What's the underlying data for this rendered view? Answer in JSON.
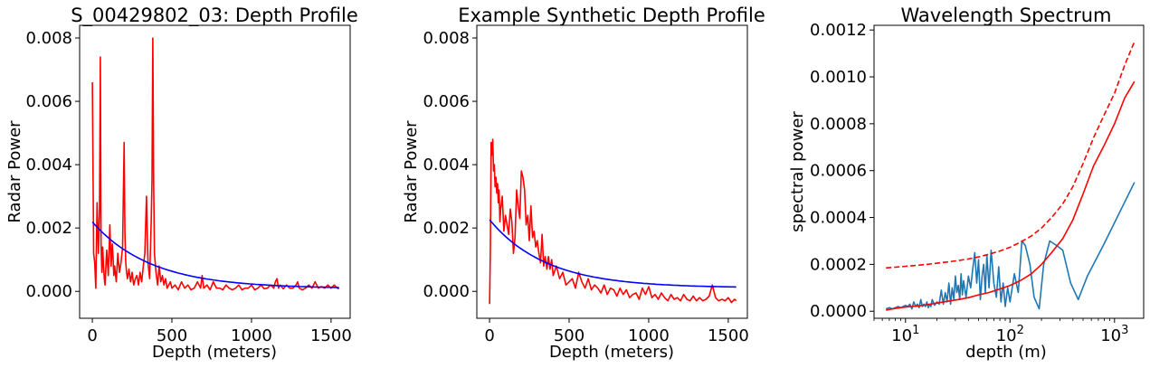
{
  "chart_data": [
    {
      "type": "line",
      "title": "S_00429802_03: Depth Profile",
      "xlabel": "Depth (meters)",
      "ylabel": "Radar Power",
      "xlim": [
        -80,
        1620
      ],
      "ylim": [
        -0.00085,
        0.0084
      ],
      "xscale": "linear",
      "grid": false,
      "xticks": [
        0,
        500,
        1000,
        1500
      ],
      "xtick_labels": [
        "0",
        "500",
        "1000",
        "1500"
      ],
      "yticks": [
        0,
        0.002,
        0.004,
        0.006,
        0.008
      ],
      "ytick_labels": [
        "0.000",
        "0.002",
        "0.004",
        "0.006",
        "0.008"
      ],
      "series": [
        {
          "color": "#ff0000",
          "style": "solid",
          "x": [
            0,
            8,
            15,
            22,
            30,
            38,
            45,
            50,
            55,
            60,
            65,
            70,
            75,
            80,
            90,
            100,
            110,
            118,
            125,
            130,
            135,
            140,
            150,
            160,
            170,
            180,
            190,
            200,
            205,
            210,
            215,
            220,
            230,
            240,
            250,
            260,
            270,
            280,
            290,
            300,
            310,
            320,
            330,
            340,
            345,
            350,
            360,
            370,
            375,
            380,
            385,
            390,
            400,
            410,
            420,
            430,
            440,
            450,
            460,
            470,
            480,
            490,
            500,
            520,
            540,
            560,
            580,
            600,
            620,
            640,
            660,
            680,
            690,
            700,
            720,
            740,
            760,
            780,
            800,
            820,
            840,
            860,
            880,
            900,
            920,
            940,
            960,
            980,
            1000,
            1020,
            1040,
            1060,
            1080,
            1100,
            1120,
            1140,
            1150,
            1160,
            1170,
            1180,
            1200,
            1220,
            1240,
            1260,
            1280,
            1290,
            1300,
            1320,
            1340,
            1360,
            1380,
            1400,
            1420,
            1440,
            1460,
            1480,
            1500,
            1520,
            1540,
            1550
          ],
          "y": [
            0.0066,
            0.0012,
            0.0009,
            0.0001,
            0.0028,
            0.0012,
            0.0026,
            0.0074,
            0.0015,
            0.0006,
            0.0014,
            0.0008,
            0.0004,
            0.0002,
            0.0013,
            0.0005,
            0.0021,
            0.0008,
            0.0015,
            0.0011,
            0.0005,
            0.0008,
            0.0003,
            0.0012,
            0.0006,
            0.0009,
            0.0014,
            0.0047,
            0.0018,
            0.0009,
            0.0006,
            0.0004,
            0.0007,
            0.0003,
            0.0006,
            0.0002,
            0.0004,
            0.0005,
            0.0002,
            0.0006,
            0.0003,
            0.0008,
            0.0012,
            0.003,
            0.0018,
            0.0009,
            0.0004,
            0.0022,
            0.0035,
            0.008,
            0.0035,
            0.0012,
            0.0006,
            0.0002,
            0.0008,
            0.0003,
            0.0005,
            0.0002,
            0.0004,
            0.0001,
            0.0002,
            0.0003,
            0.0001,
            0.0002,
            5e-05,
            0.0003,
            0.0001,
            0.0002,
            5e-05,
            0.0001,
            0.0003,
            0.0001,
            0.0005,
            0.0001,
            0.0002,
            5e-05,
            0.0003,
            0.0001,
            0.0001,
            5e-05,
            0.0002,
            0.0001,
            5e-05,
            0.0001,
            0.0002,
            5e-05,
            0.0001,
            0.0001,
            0.0002,
            5e-05,
            0.0001,
            0.0002,
            8e-05,
            0.0001,
            0.0002,
            0.0001,
            0.0003,
            0.0004,
            0.0001,
            0.0002,
            8e-05,
            0.0002,
            0.0001,
            0.0001,
            0.0002,
            0.0003,
            0.0001,
            5e-05,
            0.0001,
            0.0002,
            0.0001,
            0.0003,
            0.0001,
            0.00015,
            0.0001,
            0.0002,
            0.0001,
            0.0002,
            0.0001,
            8e-05
          ]
        },
        {
          "color": "#0000ff",
          "style": "solid",
          "fit": {
            "kind": "exponential",
            "a": 0.0021,
            "b": 9e-05,
            "k": 0.0027,
            "x_from": 0,
            "x_to": 1550
          }
        }
      ]
    },
    {
      "type": "line",
      "title": "Example Synthetic Depth Profile",
      "xlabel": "Depth (meters)",
      "ylabel": "Radar Power",
      "xlim": [
        -80,
        1620
      ],
      "ylim": [
        -0.00085,
        0.0084
      ],
      "xscale": "linear",
      "grid": false,
      "xticks": [
        0,
        500,
        1000,
        1500
      ],
      "xtick_labels": [
        "0",
        "500",
        "1000",
        "1500"
      ],
      "yticks": [
        0,
        0.002,
        0.004,
        0.006,
        0.008
      ],
      "ytick_labels": [
        "0.000",
        "0.002",
        "0.004",
        "0.006",
        "0.008"
      ],
      "series": [
        {
          "color": "#ff0000",
          "style": "solid",
          "x": [
            0,
            5,
            10,
            15,
            20,
            25,
            30,
            35,
            40,
            45,
            50,
            55,
            60,
            65,
            70,
            80,
            90,
            100,
            110,
            120,
            130,
            140,
            150,
            160,
            170,
            180,
            190,
            200,
            210,
            220,
            230,
            240,
            250,
            260,
            270,
            280,
            290,
            300,
            310,
            320,
            330,
            340,
            350,
            360,
            370,
            380,
            390,
            400,
            420,
            440,
            460,
            480,
            500,
            520,
            540,
            560,
            580,
            600,
            620,
            640,
            660,
            680,
            700,
            720,
            740,
            760,
            780,
            800,
            820,
            840,
            860,
            880,
            900,
            920,
            940,
            960,
            980,
            1000,
            1020,
            1040,
            1060,
            1080,
            1100,
            1120,
            1140,
            1160,
            1180,
            1200,
            1220,
            1240,
            1260,
            1280,
            1300,
            1320,
            1340,
            1360,
            1380,
            1400,
            1420,
            1440,
            1460,
            1480,
            1500,
            1520,
            1540,
            1550
          ],
          "y": [
            -0.0004,
            0.0014,
            0.0047,
            0.0043,
            0.0048,
            0.0038,
            0.004,
            0.0033,
            0.0036,
            0.0031,
            0.0034,
            0.0028,
            0.0032,
            0.0022,
            0.0026,
            0.003,
            0.0019,
            0.0024,
            0.0021,
            0.0018,
            0.0026,
            0.0022,
            0.0012,
            0.0017,
            0.0032,
            0.0027,
            0.0023,
            0.0038,
            0.0036,
            0.0032,
            0.0021,
            0.0024,
            0.0016,
            0.0027,
            0.0017,
            0.0019,
            0.0014,
            0.0016,
            0.0012,
            0.0009,
            0.0018,
            0.0008,
            0.0011,
            0.0007,
            0.0011,
            0.0007,
            0.001,
            0.0005,
            0.0008,
            0.0004,
            0.0006,
            0.0002,
            0.0003,
            0.0004,
            0.0001,
            0.0006,
            0.0003,
            0.0001,
            0.0004,
            5e-05,
            0.0002,
            0.0001,
            -5e-05,
            0.0002,
            -0.0001,
            0.0001,
            5e-05,
            -0.00015,
            0.0001,
            -0.0001,
            5e-05,
            -0.0002,
            -0.0001,
            -5e-05,
            -0.00025,
            0.0001,
            -0.0001,
            0.00015,
            -0.0002,
            -0.0001,
            -0.00025,
            -5e-05,
            -0.0002,
            -0.0003,
            -0.0001,
            -0.00025,
            -0.0002,
            -0.0003,
            -0.0001,
            -0.00025,
            -0.0003,
            -0.00015,
            -0.0003,
            -0.0002,
            -0.0003,
            -0.00025,
            -0.00015,
            0.0002,
            -0.0002,
            -0.0003,
            -0.00025,
            -0.0003,
            -0.0002,
            -0.00035,
            -0.00025,
            -0.0003
          ]
        },
        {
          "color": "#0000ff",
          "style": "solid",
          "fit": {
            "kind": "exponential",
            "a": 0.00215,
            "b": 0.00011,
            "k": 0.0028,
            "x_from": 0,
            "x_to": 1550
          }
        }
      ]
    },
    {
      "type": "line",
      "title": "Wavelength Spectrum",
      "xlabel": "depth (m)",
      "ylabel": "spectral power",
      "xscale": "log",
      "xlim": [
        5,
        1900
      ],
      "ylim": [
        -3e-05,
        0.00122
      ],
      "grid": false,
      "xticks": [
        10,
        100,
        1000
      ],
      "xtick_labels": [
        "10",
        "10",
        "10"
      ],
      "xtick_exponents": [
        "1",
        "2",
        "3"
      ],
      "yticks": [
        0,
        0.0002,
        0.0004,
        0.0006,
        0.0008,
        0.001,
        0.0012
      ],
      "ytick_labels": [
        "0.0000",
        "0.0002",
        "0.0004",
        "0.0006",
        "0.0008",
        "0.0010",
        "0.0012"
      ],
      "series": [
        {
          "color": "#1f77b4",
          "style": "solid",
          "x": [
            6.5,
            7,
            7.5,
            8,
            8.5,
            9,
            9.5,
            10,
            10.5,
            11,
            11.5,
            12,
            12.5,
            13,
            13.5,
            14,
            14.5,
            15,
            15.5,
            16,
            16.5,
            17,
            17.5,
            18,
            19,
            20,
            21,
            22,
            23,
            24,
            25,
            26,
            27,
            28,
            29,
            30,
            31,
            32,
            33,
            34,
            35,
            36,
            38,
            40,
            42,
            44,
            46,
            48,
            50,
            52,
            54,
            56,
            58,
            60,
            63,
            66,
            70,
            74,
            78,
            82,
            86,
            90,
            95,
            100,
            110,
            120,
            130,
            140,
            155,
            170,
            190,
            210,
            240,
            280,
            320,
            380,
            450,
            550,
            780,
            1550
          ],
          "y": [
            1e-05,
            1.5e-05,
            1e-05,
            1.5e-05,
            2e-05,
            1.5e-05,
            2e-05,
            2.5e-05,
            2e-05,
            3e-05,
            1e-05,
            4e-05,
            2e-05,
            3e-05,
            1.5e-05,
            5e-05,
            2e-05,
            3e-05,
            2e-05,
            4e-05,
            1.5e-05,
            3e-05,
            2e-05,
            5e-05,
            2.5e-05,
            4e-05,
            3e-05,
            9e-05,
            3e-05,
            8e-05,
            4e-05,
            0.00012,
            3e-05,
            0.0001,
            5e-05,
            0.00015,
            8e-05,
            0.00011,
            5e-05,
            0.00016,
            7e-05,
            0.00013,
            6e-05,
            0.00015,
            0.0001,
            0.00018,
            0.00025,
            0.00012,
            0.00022,
            5e-05,
            0.00015,
            0.0002,
            8e-05,
            0.00024,
            0.0001,
            0.00026,
            0.00012,
            6e-05,
            0.00019,
            4e-05,
            0.00012,
            2e-05,
            0.0001,
            4e-05,
            0.00016,
            8e-05,
            0.0003,
            0.00028,
            0.0002,
            6e-05,
            1e-05,
            0.0002,
            0.0003,
            0.00028,
            0.00026,
            0.00012,
            5e-05,
            0.00015,
            0.00028,
            0.00055
          ]
        },
        {
          "color": "#ff0000",
          "style": "solid",
          "x": [
            6.5,
            8,
            10,
            13,
            16,
            20,
            25,
            32,
            40,
            50,
            63,
            80,
            100,
            125,
            160,
            200,
            250,
            320,
            400,
            500,
            630,
            800,
            1000,
            1250,
            1550
          ],
          "y": [
            5e-06,
            1.2e-05,
            1.8e-05,
            2.2e-05,
            2.8e-05,
            3.5e-05,
            4.2e-05,
            5e-05,
            5.8e-05,
            7e-05,
            8e-05,
            9.5e-05,
            0.00011,
            0.00013,
            0.00016,
            0.0002,
            0.00025,
            0.00031,
            0.00039,
            0.0005,
            0.00062,
            0.00071,
            0.0008,
            0.00091,
            0.00098
          ]
        },
        {
          "color": "#ff0000",
          "style": "dashed",
          "x": [
            6.5,
            8,
            10,
            13,
            16,
            20,
            25,
            32,
            40,
            50,
            63,
            80,
            100,
            125,
            160,
            200,
            250,
            320,
            400,
            500,
            630,
            800,
            1000,
            1250,
            1550
          ],
          "y": [
            0.000185,
            0.000188,
            0.000192,
            0.000196,
            0.0002,
            0.000205,
            0.00021,
            0.000216,
            0.000223,
            0.000232,
            0.000243,
            0.000257,
            0.000273,
            0.000294,
            0.000321,
            0.000355,
            0.0004,
            0.000458,
            0.000532,
            0.00063,
            0.00074,
            0.00084,
            0.00093,
            0.00105,
            0.00115
          ]
        }
      ]
    }
  ]
}
